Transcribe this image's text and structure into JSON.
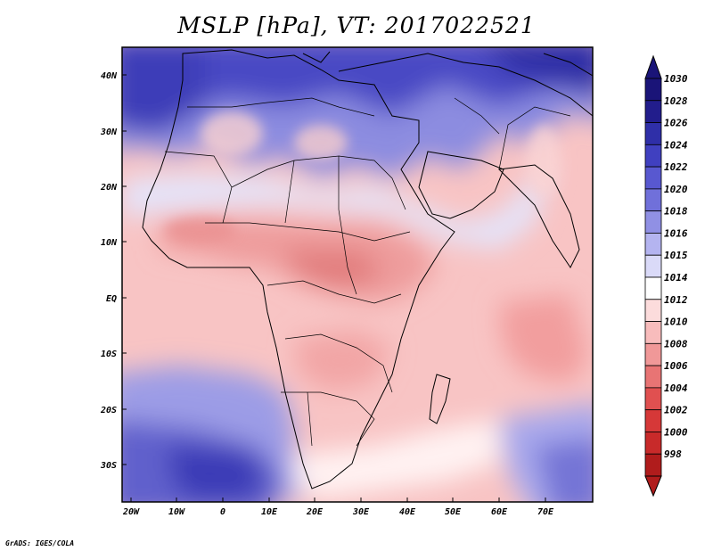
{
  "title": "MSLP [hPa], VT: 2017022521",
  "credit": "GrADS: IGES/COLA",
  "map": {
    "lat_labels": [
      "40N",
      "30N",
      "20N",
      "10N",
      "EQ",
      "10S",
      "20S",
      "30S"
    ],
    "lon_labels": [
      "20W",
      "10W",
      "0",
      "10E",
      "20E",
      "30E",
      "40E",
      "50E",
      "60E",
      "70E"
    ],
    "features": [
      "coastlines",
      "country-borders",
      "pressure-field"
    ]
  },
  "colorbar": {
    "levels": [
      "1030",
      "1028",
      "1026",
      "1024",
      "1022",
      "1020",
      "1018",
      "1016",
      "1015",
      "1014",
      "1012",
      "1010",
      "1008",
      "1006",
      "1004",
      "1002",
      "1000",
      "998"
    ],
    "colors": [
      "#1a1478",
      "#221d8c",
      "#2f2fa8",
      "#4040c0",
      "#5858d0",
      "#7070da",
      "#9090e4",
      "#b4b4f0",
      "#dadaf8",
      "#ffffff",
      "#fcdcdc",
      "#f8bcbc",
      "#f09898",
      "#e87474",
      "#e05050",
      "#d63838",
      "#c82a2a",
      "#b01c1c"
    ],
    "top_color": "#1a1478",
    "bottom_color": "#b01c1c"
  }
}
